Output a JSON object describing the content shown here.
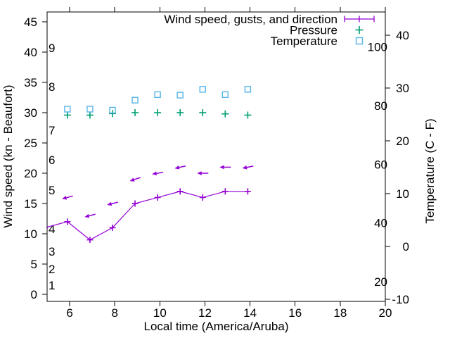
{
  "page": {
    "background": "#ffffff",
    "text_color": "#000000"
  },
  "colors": {
    "wind": "#9400d3",
    "pressure": "#009e73",
    "temperature": "#56b4e9",
    "axis": "#000000"
  },
  "chart_data": {
    "type": "line",
    "title": "",
    "xlabel": "Local time (America/Aruba)",
    "ylabel_left": "Wind speed (kn - Beaufort)",
    "ylabel_right": "Temperature (C - F)",
    "grid": false,
    "legend_position": "top-right-inside",
    "xlim": [
      5,
      20
    ],
    "ylim_left": [
      -1.16,
      46.63
    ],
    "ylim_right": [
      -10.4,
      44.4
    ],
    "x_ticks": [
      6,
      8,
      10,
      12,
      14,
      16,
      18,
      20
    ],
    "y_ticks_left": [
      0,
      5,
      10,
      15,
      20,
      25,
      30,
      35,
      40,
      45
    ],
    "y_ticks_right": [
      -10,
      0,
      10,
      20,
      30,
      40
    ],
    "beaufort_scale": [
      {
        "label": "1",
        "kn": 1.5
      },
      {
        "label": "2",
        "kn": 4.2
      },
      {
        "label": "3",
        "kn": 7.1
      },
      {
        "label": "4",
        "kn": 10.8
      },
      {
        "label": "5",
        "kn": 17.2
      },
      {
        "label": "6",
        "kn": 22.2
      },
      {
        "label": "7",
        "kn": 27.1
      },
      {
        "label": "8",
        "kn": 34.3
      },
      {
        "label": "9",
        "kn": 40.7
      }
    ],
    "fahrenheit_scale": [
      {
        "label": "20",
        "c": -6.67
      },
      {
        "label": "40",
        "c": 4.44
      },
      {
        "label": "60",
        "c": 15.56
      },
      {
        "label": "80",
        "c": 26.67
      },
      {
        "label": "100",
        "c": 37.78
      }
    ],
    "legend": [
      {
        "label": "Wind speed, gusts, and direction",
        "marker": "errorbar",
        "color": "#9400d3"
      },
      {
        "label": "Pressure",
        "marker": "plus",
        "color": "#009e73"
      },
      {
        "label": "Temperature",
        "marker": "square",
        "color": "#56b4e9"
      }
    ],
    "series": [
      {
        "name": "Wind speed",
        "key": "wind",
        "style": "line-plus",
        "color": "#9400d3",
        "axis": "left",
        "x": [
          4.9,
          5.9,
          6.9,
          7.9,
          8.9,
          9.9,
          10.9,
          11.9,
          12.9,
          13.9
        ],
        "y": [
          11,
          12,
          9,
          11,
          15,
          16,
          17,
          16,
          17,
          17
        ]
      },
      {
        "name": "Wind gusts and direction",
        "key": "gusts",
        "style": "vector-left",
        "color": "#9400d3",
        "axis": "left",
        "x": [
          5.9,
          6.9,
          7.9,
          8.9,
          9.9,
          10.9,
          11.9,
          12.9,
          13.9
        ],
        "y": [
          16,
          13,
          15,
          19,
          20,
          21,
          20,
          21,
          21
        ],
        "tilt_deg": [
          15,
          14,
          14,
          18,
          9,
          12,
          0,
          0,
          11
        ]
      },
      {
        "name": "Pressure",
        "key": "pressure",
        "style": "plus",
        "color": "#009e73",
        "axis": "left",
        "x": [
          5.9,
          6.9,
          7.9,
          8.9,
          9.9,
          10.9,
          11.9,
          12.9,
          13.9
        ],
        "y": [
          29.6,
          29.6,
          29.85,
          30.0,
          30.0,
          30.0,
          30.0,
          29.8,
          29.6
        ]
      },
      {
        "name": "Temperature",
        "key": "temperature",
        "style": "open-square",
        "color": "#56b4e9",
        "axis": "right",
        "x": [
          5.9,
          6.9,
          7.9,
          8.9,
          9.9,
          10.9,
          11.9,
          12.9,
          13.9
        ],
        "y": [
          26.0,
          26.0,
          25.8,
          27.7,
          28.75,
          28.65,
          29.75,
          28.75,
          29.75
        ]
      }
    ]
  }
}
